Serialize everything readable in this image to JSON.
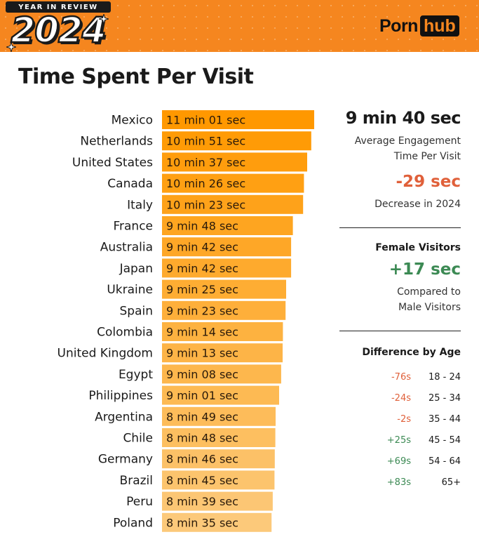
{
  "header": {
    "badge": "YEAR IN REVIEW",
    "year": "2024",
    "brand_left": "Porn",
    "brand_right": "hub"
  },
  "title": "Time Spent Per Visit",
  "colors": {
    "banner": "#f5861f",
    "bar_top": "#ff9800",
    "bar_bottom": "#fcc97a",
    "negative": "#e0603a",
    "positive": "#3c8a54"
  },
  "chart_data": {
    "type": "bar",
    "orientation": "horizontal",
    "title": "",
    "xlabel": "",
    "ylabel": "",
    "unit": "seconds",
    "xlim": [
      0,
      661
    ],
    "categories": [
      "Mexico",
      "Netherlands",
      "United States",
      "Canada",
      "Italy",
      "France",
      "Australia",
      "Japan",
      "Ukraine",
      "Spain",
      "Colombia",
      "United Kingdom",
      "Egypt",
      "Philippines",
      "Argentina",
      "Chile",
      "Germany",
      "Brazil",
      "Peru",
      "Poland"
    ],
    "values": [
      661,
      651,
      637,
      626,
      623,
      588,
      582,
      582,
      565,
      563,
      554,
      553,
      548,
      541,
      529,
      528,
      526,
      525,
      519,
      515
    ],
    "labels": [
      "11 min 01 sec",
      "10 min 51 sec",
      "10 min 37 sec",
      "10 min 26 sec",
      "10 min 23 sec",
      "9 min 48 sec",
      "9 min 42 sec",
      "9 min 42 sec",
      "9 min 25 sec",
      "9 min 23 sec",
      "9 min 14 sec",
      "9 min 13 sec",
      "9 min 08 sec",
      "9 min 01 sec",
      "8 min 49 sec",
      "8 min 48 sec",
      "8 min 46 sec",
      "8 min 45 sec",
      "8 min 39 sec",
      "8 min 35 sec"
    ]
  },
  "stats": {
    "average": "9 min 40 sec",
    "average_caption_1": "Average Engagement",
    "average_caption_2": "Time Per Visit",
    "change": "-29 sec",
    "change_caption": "Decrease in 2024",
    "female_heading": "Female Visitors",
    "female_delta": "+17 sec",
    "female_caption_1": "Compared to",
    "female_caption_2": "Male Visitors",
    "age_heading": "Difference by Age",
    "age_rows": [
      {
        "diff": "-76s",
        "range": "18 - 24",
        "sign": "neg"
      },
      {
        "diff": "-24s",
        "range": "25 - 34",
        "sign": "neg"
      },
      {
        "diff": "-2s",
        "range": "35 - 44",
        "sign": "neg"
      },
      {
        "diff": "+25s",
        "range": "45 - 54",
        "sign": "pos"
      },
      {
        "diff": "+69s",
        "range": "54 - 64",
        "sign": "pos"
      },
      {
        "diff": "+83s",
        "range": "65+",
        "sign": "pos"
      }
    ]
  }
}
